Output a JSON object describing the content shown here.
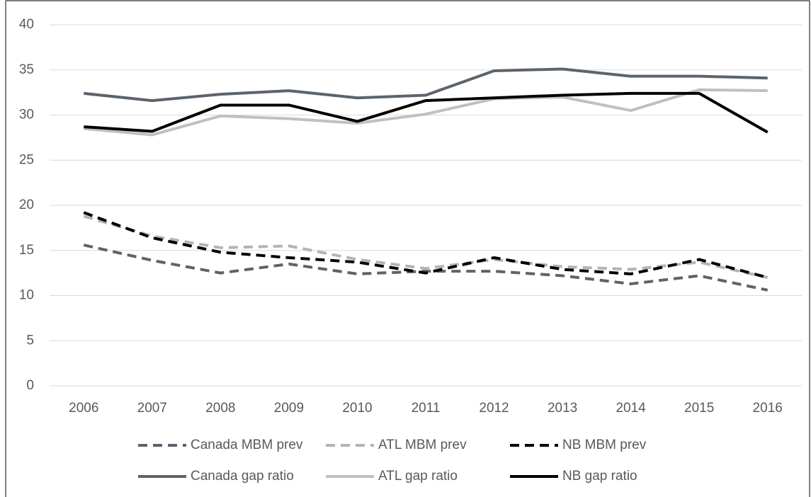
{
  "chart_data": {
    "type": "line",
    "categories": [
      "2006",
      "2007",
      "2008",
      "2009",
      "2010",
      "2011",
      "2012",
      "2013",
      "2014",
      "2015",
      "2016"
    ],
    "series": [
      {
        "name": "Canada MBM prev",
        "color": "#5b646c",
        "dashed": true,
        "values": [
          15.6,
          13.9,
          12.5,
          13.5,
          12.4,
          12.7,
          12.7,
          12.2,
          11.3,
          12.2,
          10.6
        ]
      },
      {
        "name": "ATL MBM prev",
        "color": "#b4b4b4",
        "dashed": true,
        "values": [
          18.8,
          16.6,
          15.3,
          15.5,
          14.0,
          13.0,
          14.0,
          13.2,
          12.9,
          13.7,
          12.0
        ]
      },
      {
        "name": "NB MBM prev",
        "color": "#000000",
        "dashed": true,
        "values": [
          19.2,
          16.4,
          14.8,
          14.2,
          13.7,
          12.5,
          14.2,
          12.9,
          12.4,
          14.0,
          12.0
        ]
      },
      {
        "name": "Canada gap ratio",
        "color": "#5b646c",
        "dashed": false,
        "values": [
          32.4,
          31.6,
          32.3,
          32.7,
          31.9,
          32.2,
          34.9,
          35.1,
          34.3,
          34.3,
          34.1
        ]
      },
      {
        "name": "ATL gap ratio",
        "color": "#c0c0c0",
        "dashed": false,
        "values": [
          28.5,
          27.8,
          29.9,
          29.6,
          29.1,
          30.1,
          31.8,
          32.0,
          30.5,
          32.8,
          32.7
        ]
      },
      {
        "name": "NB gap ratio",
        "color": "#000000",
        "dashed": false,
        "values": [
          28.7,
          28.2,
          31.1,
          31.1,
          29.3,
          31.6,
          31.9,
          32.2,
          32.4,
          32.4,
          28.1
        ]
      }
    ],
    "ylim": [
      0,
      40
    ],
    "yticks": [
      0,
      5,
      10,
      15,
      20,
      25,
      30,
      35,
      40
    ],
    "grid": true,
    "legend": "bottom"
  }
}
